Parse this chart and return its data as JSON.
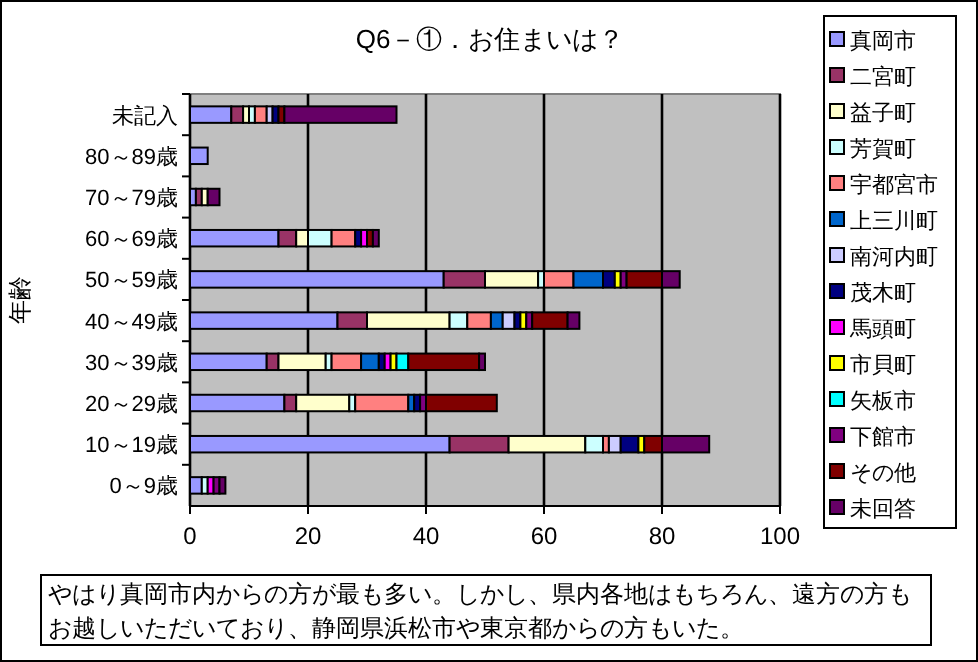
{
  "chart_data": {
    "type": "bar",
    "orientation": "horizontal",
    "stacked": true,
    "title": "Q6－①．お住まいは？",
    "ylabel": "年齢",
    "categories": [
      "未記入",
      "80～89歳",
      "70～79歳",
      "60～69歳",
      "50～59歳",
      "40～49歳",
      "30～39歳",
      "20～29歳",
      "10～19歳",
      "0～9歳"
    ],
    "series": [
      {
        "name": "真岡市",
        "color": "#9999ff",
        "values": [
          7,
          3,
          1,
          15,
          43,
          25,
          13,
          16,
          44,
          2
        ]
      },
      {
        "name": "二宮町",
        "color": "#993366",
        "values": [
          2,
          0,
          1,
          3,
          7,
          5,
          2,
          2,
          10,
          0
        ]
      },
      {
        "name": "益子町",
        "color": "#ffffcc",
        "values": [
          1,
          0,
          1,
          2,
          9,
          14,
          8,
          9,
          13,
          0
        ]
      },
      {
        "name": "芳賀町",
        "color": "#ccffff",
        "values": [
          1,
          0,
          0,
          4,
          1,
          3,
          1,
          1,
          3,
          1
        ]
      },
      {
        "name": "宇都宮市",
        "color": "#ff8080",
        "values": [
          2,
          0,
          0,
          4,
          5,
          4,
          5,
          9,
          1,
          0
        ]
      },
      {
        "name": "上三川町",
        "color": "#0066cc",
        "values": [
          0,
          0,
          0,
          0,
          5,
          2,
          3,
          1,
          0,
          0
        ]
      },
      {
        "name": "南河内町",
        "color": "#ccccff",
        "values": [
          1,
          0,
          0,
          0,
          0,
          2,
          0,
          0,
          2,
          0
        ]
      },
      {
        "name": "茂木町",
        "color": "#000080",
        "values": [
          1,
          0,
          0,
          1,
          2,
          1,
          1,
          1,
          3,
          0
        ]
      },
      {
        "name": "馬頭町",
        "color": "#ff00ff",
        "values": [
          0,
          0,
          0,
          1,
          0,
          0,
          1,
          0,
          0,
          1
        ]
      },
      {
        "name": "市貝町",
        "color": "#ffff00",
        "values": [
          0,
          0,
          0,
          0,
          1,
          1,
          1,
          0,
          1,
          0
        ]
      },
      {
        "name": "矢板市",
        "color": "#00ffff",
        "values": [
          0,
          0,
          0,
          0,
          0,
          0,
          2,
          0,
          0,
          0
        ]
      },
      {
        "name": "下館市",
        "color": "#800080",
        "values": [
          0,
          0,
          0,
          0,
          1,
          1,
          0,
          1,
          0,
          1
        ]
      },
      {
        "name": "その他",
        "color": "#800000",
        "values": [
          1,
          0,
          0,
          1,
          6,
          6,
          12,
          12,
          3,
          0
        ]
      },
      {
        "name": "未回答",
        "color": "#660066",
        "values": [
          19,
          0,
          2,
          1,
          3,
          2,
          1,
          0,
          8,
          1
        ]
      }
    ],
    "xlim": [
      0,
      100
    ],
    "xticks": [
      0,
      20,
      40,
      60,
      80,
      100
    ],
    "grid": "x",
    "legend": "right",
    "annotations": [
      "やはり真岡市内からの方が最も多い。しかし、県内各地はもちろん、遠方の方もお越しいただいており、静岡県浜松市や東京都からの方もいた。"
    ]
  }
}
